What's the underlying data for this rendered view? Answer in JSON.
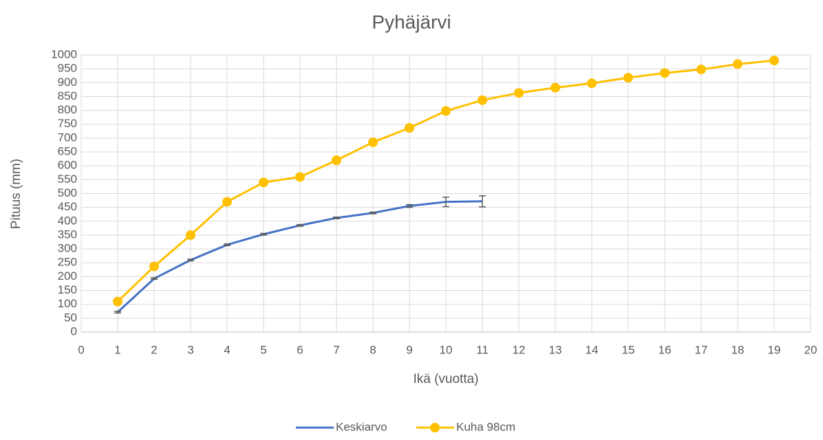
{
  "chart_data": {
    "type": "line",
    "title": "Pyhäjärvi",
    "x_label": "Ikä (vuotta)",
    "y_label": "Pituus (mm)",
    "xlim": [
      0,
      20
    ],
    "xticks": [
      0,
      1,
      2,
      3,
      4,
      5,
      6,
      7,
      8,
      9,
      10,
      11,
      12,
      13,
      14,
      15,
      16,
      17,
      18,
      19,
      20
    ],
    "ylim": [
      0,
      1000
    ],
    "yticks": [
      0,
      50,
      100,
      150,
      200,
      250,
      300,
      350,
      400,
      450,
      500,
      550,
      600,
      650,
      700,
      750,
      800,
      850,
      900,
      950,
      1000
    ],
    "grid": true,
    "legend": "bottom",
    "series": [
      {
        "name": "Keskiarvo",
        "color": "#4472c4",
        "markers": false,
        "x": [
          1,
          2,
          3,
          4,
          5,
          6,
          7,
          8,
          9,
          10,
          11
        ],
        "values": [
          72,
          193,
          260,
          315,
          353,
          385,
          412,
          430,
          455,
          470,
          472
        ],
        "errors": [
          3,
          3,
          3,
          3,
          3,
          3,
          3,
          3,
          5,
          17,
          20
        ]
      },
      {
        "name": "Kuha 98cm",
        "color": "#ffc000",
        "markers": true,
        "x": [
          1,
          2,
          3,
          4,
          5,
          6,
          7,
          8,
          9,
          10,
          11,
          12,
          13,
          14,
          15,
          16,
          17,
          18,
          19
        ],
        "values": [
          110,
          237,
          350,
          470,
          540,
          560,
          620,
          685,
          737,
          798,
          837,
          863,
          882,
          898,
          918,
          935,
          948,
          967,
          980
        ]
      }
    ]
  }
}
